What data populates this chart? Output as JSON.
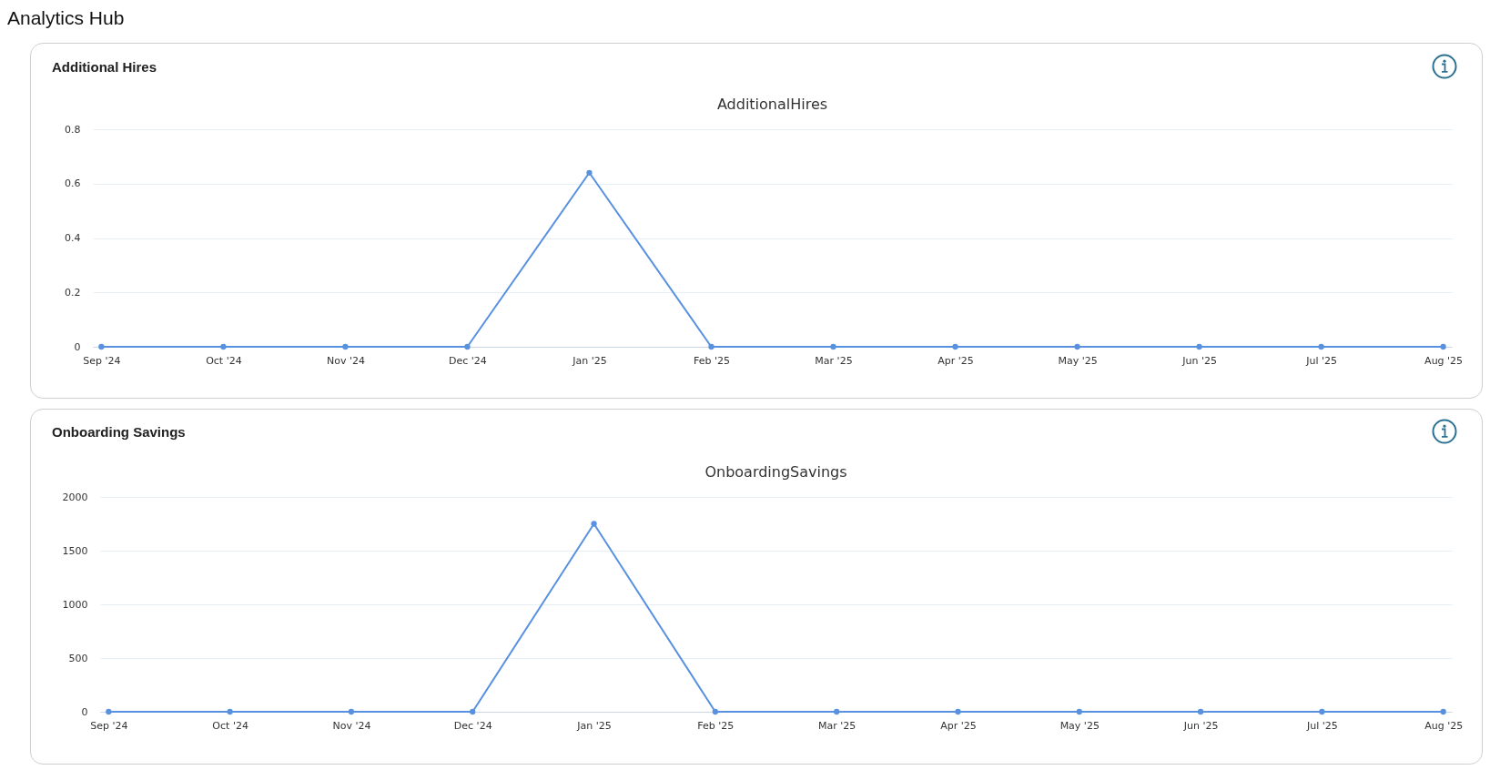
{
  "chart_data": [
    {
      "type": "line",
      "title": "Additional Hires",
      "subtitle": "AdditionalHires",
      "annotations": [
        "Analytics Hub"
      ],
      "categories": [
        "Sep '24",
        "Oct '24",
        "Nov '24",
        "Dec '24",
        "Jan '25",
        "Feb '25",
        "Mar '25",
        "Apr '25",
        "May '25",
        "Jun '25",
        "Jul '25",
        "Aug '25"
      ],
      "series": [
        {
          "color": "#5891e0",
          "values": [
            0,
            0,
            0,
            0,
            0.64,
            0,
            0,
            0,
            0,
            0,
            0,
            0
          ]
        }
      ],
      "ylim": [
        0,
        0.8
      ],
      "yticks": [
        0,
        0.2,
        0.4,
        0.6,
        0.8
      ],
      "grid": "y",
      "marker": "circle",
      "line_style": "solid"
    },
    {
      "type": "line",
      "title": "Onboarding Savings",
      "subtitle": "OnboardingSavings",
      "categories": [
        "Sep '24",
        "Oct '24",
        "Nov '24",
        "Dec '24",
        "Jan '25",
        "Feb '25",
        "Mar '25",
        "Apr '25",
        "May '25",
        "Jun '25",
        "Jul '25",
        "Aug '25"
      ],
      "series": [
        {
          "color": "#5891e0",
          "values": [
            0,
            0,
            0,
            0,
            1750,
            0,
            0,
            0,
            0,
            0,
            0,
            0
          ]
        }
      ],
      "ylim": [
        0,
        2000
      ],
      "yticks": [
        0,
        500,
        1000,
        1500,
        2000
      ],
      "grid": "y",
      "marker": "circle",
      "line_style": "solid"
    }
  ]
}
